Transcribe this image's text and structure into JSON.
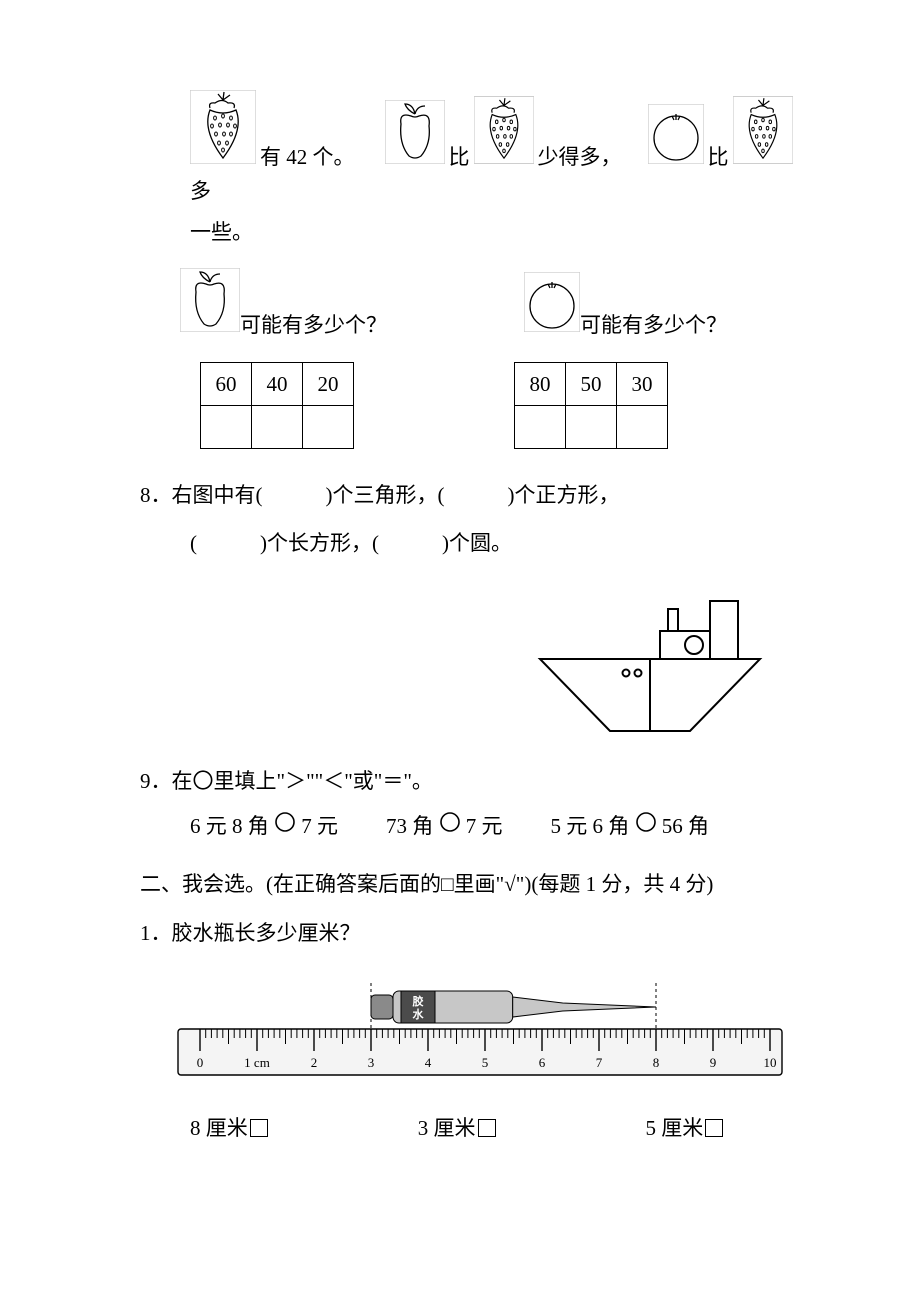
{
  "q7": {
    "line1_pre": "有 42 个。",
    "line1_mid": "比",
    "line1_post": "少得多，",
    "line1_mid2": "比",
    "line1_end": "多",
    "line2": "一些。",
    "apple_q": "可能有多少个？",
    "orange_q": "可能有多少个？",
    "table1": [
      "60",
      "40",
      "20"
    ],
    "table2": [
      "80",
      "50",
      "30"
    ]
  },
  "q8": {
    "num": "8．",
    "line1": "右图中有(　　　)个三角形，(　　　)个正方形，",
    "line2": "(　　　)个长方形，(　　　)个圆。"
  },
  "q9": {
    "num": "9．",
    "title": "在〇里填上\"＞\"\"＜\"或\"＝\"。",
    "item1_a": "6 元 8 角",
    "item1_b": "7 元",
    "item2_a": "73 角",
    "item2_b": "7 元",
    "item3_a": "5 元 6 角",
    "item3_b": "56 角"
  },
  "sec2": {
    "heading": "二、我会选。(在正确答案后面的□里画\"√\")(每题 1 分，共 4 分)",
    "q1_num": "1．",
    "q1_text": "胶水瓶长多少厘米？",
    "ruler_labels": [
      "0",
      "1 cm",
      "2",
      "3",
      "4",
      "5",
      "6",
      "7",
      "8",
      "9",
      "10"
    ],
    "ruler": {
      "start": 0,
      "end": 10,
      "glue_start": 3,
      "glue_end": 8
    },
    "choice1": "8 厘米",
    "choice2": "3 厘米",
    "choice3": "5 厘米"
  },
  "colors": {
    "ink": "#000000",
    "watermark": "#e8e8e8",
    "glue_body": "#c7c7c7",
    "glue_label": "#4b4b4b"
  }
}
